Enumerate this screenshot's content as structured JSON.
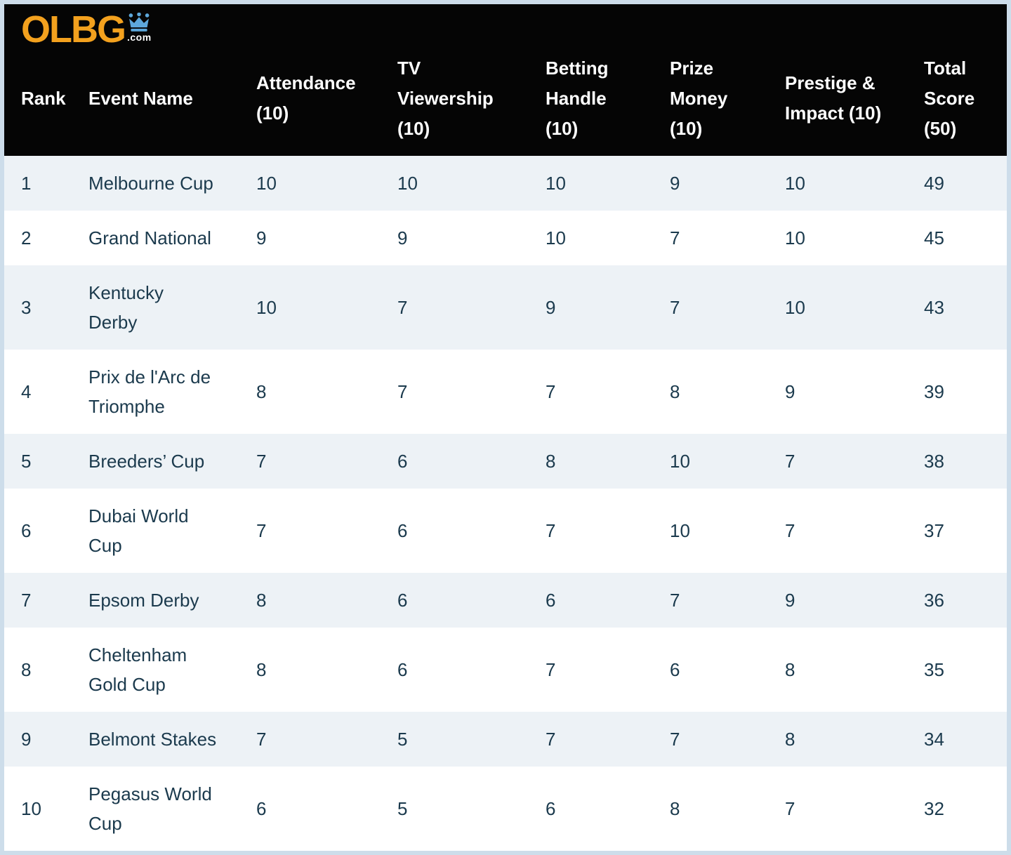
{
  "logo": {
    "text": "OLBG",
    "suffix": ".com",
    "crown_icon": "crown-icon"
  },
  "colors": {
    "logo_orange": "#F3A11E",
    "crown_blue": "#5DA8DC",
    "header_bg": "#050505",
    "header_text": "#FFFFFF",
    "row_alt_bg": "#EDF2F6",
    "row_bg": "#FFFFFF",
    "cell_text": "#1B3A4D",
    "page_border": "#CDDDEA"
  },
  "chart_data": {
    "type": "table",
    "columns": [
      {
        "id": "rank",
        "label": "Rank",
        "display": "Rank"
      },
      {
        "id": "event-name",
        "label": "Event Name",
        "display": "Event Name"
      },
      {
        "id": "attendance",
        "label": "Attendance (10)",
        "display": "Attendance\n(10)"
      },
      {
        "id": "tv-viewership",
        "label": "TV Viewership (10)",
        "display": "TV\nViewership\n(10)"
      },
      {
        "id": "betting-handle",
        "label": "Betting Handle (10)",
        "display": "Betting\nHandle\n(10)"
      },
      {
        "id": "prize-money",
        "label": "Prize Money (10)",
        "display": "Prize\nMoney\n(10)"
      },
      {
        "id": "prestige-impact",
        "label": "Prestige & Impact (10)",
        "display": "Prestige &\nImpact (10)"
      },
      {
        "id": "total-score",
        "label": "Total Score (50)",
        "display": "Total\nScore\n(50)"
      }
    ],
    "rows": [
      {
        "rank": "1",
        "event": "Melbourne Cup",
        "event_display": "Melbourne Cup",
        "attendance": "10",
        "tv_viewership": "10",
        "betting_handle": "10",
        "prize_money": "9",
        "prestige_impact": "10",
        "total_score": "49"
      },
      {
        "rank": "2",
        "event": "Grand National",
        "event_display": "Grand National",
        "attendance": "9",
        "tv_viewership": "9",
        "betting_handle": "10",
        "prize_money": "7",
        "prestige_impact": "10",
        "total_score": "45"
      },
      {
        "rank": "3",
        "event": "Kentucky Derby",
        "event_display": "Kentucky\nDerby",
        "attendance": "10",
        "tv_viewership": "7",
        "betting_handle": "9",
        "prize_money": "7",
        "prestige_impact": "10",
        "total_score": "43"
      },
      {
        "rank": "4",
        "event": "Prix de l'Arc de Triomphe",
        "event_display": "Prix de l'Arc de\nTriomphe",
        "attendance": "8",
        "tv_viewership": "7",
        "betting_handle": "7",
        "prize_money": "8",
        "prestige_impact": "9",
        "total_score": "39"
      },
      {
        "rank": "5",
        "event": "Breeders’ Cup",
        "event_display": "Breeders’ Cup",
        "attendance": "7",
        "tv_viewership": "6",
        "betting_handle": "8",
        "prize_money": "10",
        "prestige_impact": "7",
        "total_score": "38"
      },
      {
        "rank": "6",
        "event": "Dubai World Cup",
        "event_display": "Dubai World\nCup",
        "attendance": "7",
        "tv_viewership": "6",
        "betting_handle": "7",
        "prize_money": "10",
        "prestige_impact": "7",
        "total_score": "37"
      },
      {
        "rank": "7",
        "event": "Epsom Derby",
        "event_display": "Epsom Derby",
        "attendance": "8",
        "tv_viewership": "6",
        "betting_handle": "6",
        "prize_money": "7",
        "prestige_impact": "9",
        "total_score": "36"
      },
      {
        "rank": "8",
        "event": "Cheltenham Gold Cup",
        "event_display": "Cheltenham\nGold Cup",
        "attendance": "8",
        "tv_viewership": "6",
        "betting_handle": "7",
        "prize_money": "6",
        "prestige_impact": "8",
        "total_score": "35"
      },
      {
        "rank": "9",
        "event": "Belmont Stakes",
        "event_display": "Belmont Stakes",
        "attendance": "7",
        "tv_viewership": "5",
        "betting_handle": "7",
        "prize_money": "7",
        "prestige_impact": "8",
        "total_score": "34"
      },
      {
        "rank": "10",
        "event": "Pegasus World Cup",
        "event_display": "Pegasus World\nCup",
        "attendance": "6",
        "tv_viewership": "5",
        "betting_handle": "6",
        "prize_money": "8",
        "prestige_impact": "7",
        "total_score": "32"
      }
    ]
  }
}
